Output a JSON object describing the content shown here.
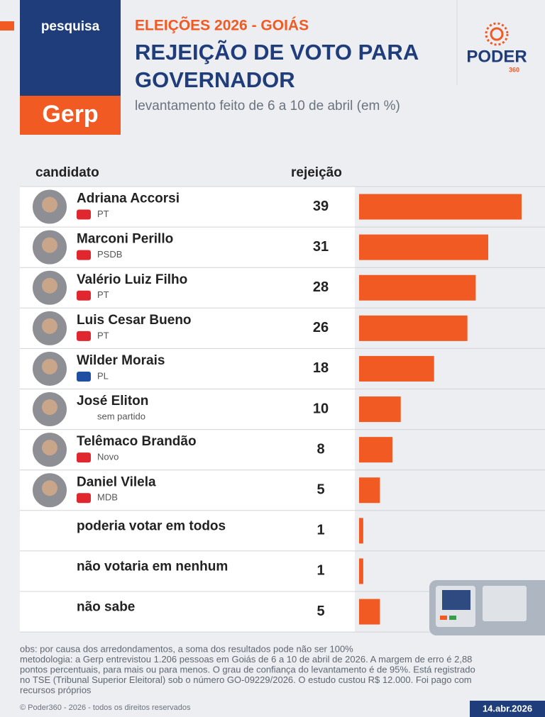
{
  "header": {
    "tag": "pesquisa",
    "brand": "Gerp",
    "logo": "PODER",
    "logo_sub": "360"
  },
  "chart_data": {
    "type": "bar",
    "orientation": "horizontal",
    "kicker": "ELEIÇÕES 2026 - GOIÁS",
    "title_lines": [
      "REJEIÇÃO DE VOTO PARA",
      "GOVERNADOR"
    ],
    "subtitle": "levantamento feito de 6 a 10 de abril (em %)",
    "category_header": "candidato",
    "value_header": "rejeição",
    "categories": [
      "Adriana Accorsi",
      "Marconi Perillo",
      "Valério Luiz Filho",
      "Luis Cesar Bueno",
      "Wilder Morais",
      "José Eliton",
      "Telêmaco Brandão",
      "Daniel Vilela",
      "poderia votar em todos",
      "não votaria em nenhum",
      "não sabe"
    ],
    "parties": [
      "PT",
      "PSDB",
      "PT",
      "PT",
      "PL",
      "sem partido",
      "Novo",
      "MDB",
      null,
      null,
      null
    ],
    "values": [
      39,
      31,
      28,
      26,
      18,
      10,
      8,
      5,
      1,
      1,
      5
    ],
    "color": "#f15a22"
  },
  "footer": {
    "notes": [
      "obs: por causa dos arredondamentos, a soma dos resultados pode não ser 100%",
      "metodologia: a Gerp entrevistou 1.206 pessoas em Goiás de 6 a 10 de abril de 2026. A margem de erro é 2,88",
      "pontos percentuais, para mais ou para menos. O grau de confiança do levantamento é de 95%. Está registrado",
      "no TSE (Tribunal Superior Eleitoral) sob o número GO-09229/2026. O estudo custou R$ 12.000. Foi pago com",
      "recursos próprios"
    ],
    "copyright": "© Poder360 - 2026 - todos os direitos reservados",
    "date": "14.abr.2026"
  }
}
